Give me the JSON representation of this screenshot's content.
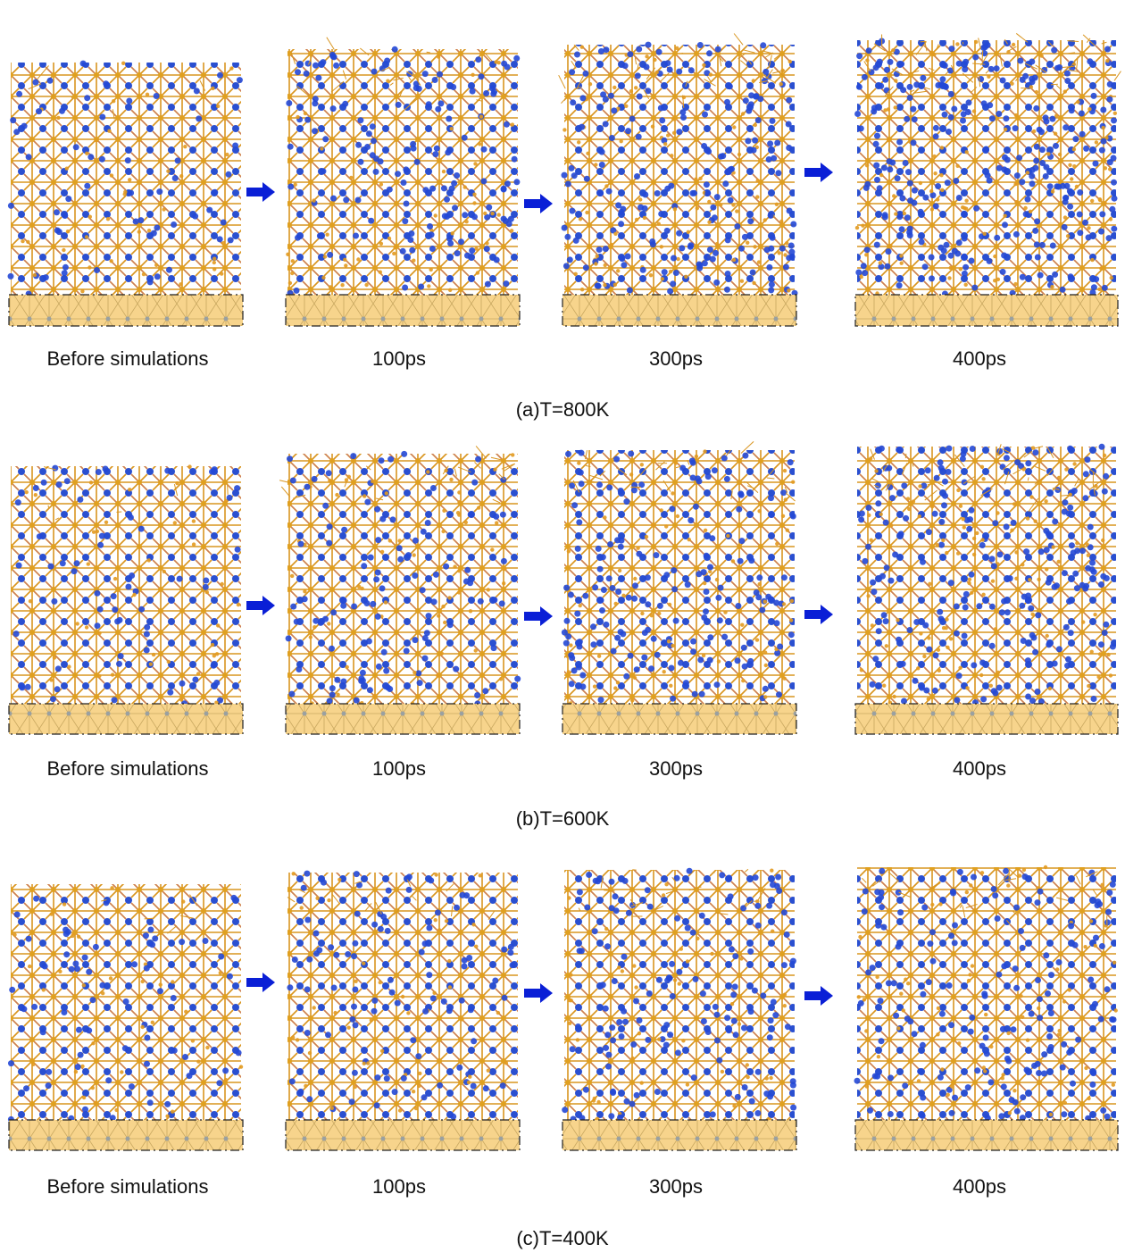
{
  "rows": [
    {
      "caption": "(a)T=800K",
      "panels": [
        {
          "label": "Before simulations"
        },
        {
          "label": "100ps"
        },
        {
          "label": "300ps"
        },
        {
          "label": "400ps"
        }
      ]
    },
    {
      "caption": "(b)T=600K",
      "panels": [
        {
          "label": "Before simulations"
        },
        {
          "label": "100ps"
        },
        {
          "label": "300ps"
        },
        {
          "label": "400ps"
        }
      ]
    },
    {
      "caption": "(c)T=400K",
      "panels": [
        {
          "label": "Before simulations"
        },
        {
          "label": "100ps"
        },
        {
          "label": "300ps"
        },
        {
          "label": "400ps"
        }
      ]
    }
  ]
}
